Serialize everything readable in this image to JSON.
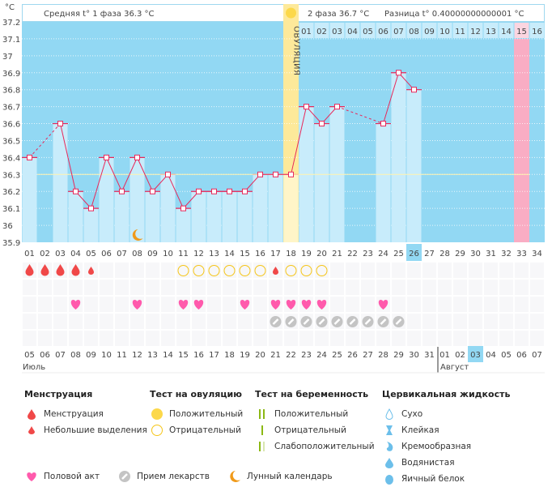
{
  "header": {
    "unit": "°C",
    "phase1": "Средняя t° 1 фаза  36.3 °C",
    "phase2": "2 фаза  36.7 °C",
    "diff": "Разница t° 0.40000000000001 °C",
    "ovulation_label": "ОВУЛЯЦИЯ"
  },
  "chart_data": {
    "type": "bar",
    "ylim": [
      35.9,
      37.2
    ],
    "yticks": [
      "35.9",
      "36",
      "36.1",
      "36.2",
      "36.3",
      "36.4",
      "36.5",
      "36.6",
      "36.7",
      "36.8",
      "36.9",
      "37",
      "37.1",
      "37.2"
    ],
    "cycle_days": [
      "01",
      "02",
      "03",
      "04",
      "05",
      "06",
      "07",
      "08",
      "09",
      "10",
      "11",
      "12",
      "13",
      "14",
      "15",
      "16",
      "17",
      "18",
      "19",
      "20",
      "21",
      "22",
      "23",
      "24",
      "25",
      "26",
      "27",
      "28",
      "29",
      "30",
      "31",
      "32",
      "33",
      "34"
    ],
    "temperatures": [
      36.4,
      null,
      36.6,
      36.2,
      36.1,
      36.4,
      36.2,
      36.4,
      36.2,
      36.3,
      36.1,
      36.2,
      36.2,
      36.2,
      36.2,
      36.3,
      36.3,
      36.3,
      36.7,
      36.6,
      36.7,
      null,
      null,
      36.6,
      36.9,
      36.8,
      null,
      null,
      null,
      null,
      null,
      null,
      null,
      null
    ],
    "coverline": 36.3,
    "ovulation_day": 18,
    "expected_period_day": 33,
    "today_day": 26,
    "luteal_days": [
      "01",
      "02",
      "03",
      "04",
      "05",
      "06",
      "07",
      "08",
      "09",
      "10",
      "11",
      "12",
      "13",
      "14",
      "15",
      "16"
    ],
    "moon_day": 8,
    "menstruation": {
      "heavy": [
        1,
        2,
        3,
        4
      ],
      "light": [
        5,
        17
      ]
    },
    "ovulation_test_negative": [
      11,
      12,
      13,
      14,
      15,
      16,
      18,
      19,
      20
    ],
    "intercourse": [
      4,
      8,
      11,
      12,
      15,
      17,
      18,
      19,
      20,
      24
    ],
    "medication": [
      17,
      18,
      19,
      20,
      21,
      22,
      23,
      24,
      25
    ],
    "dates": [
      "05",
      "06",
      "07",
      "08",
      "09",
      "10",
      "11",
      "12",
      "13",
      "14",
      "15",
      "16",
      "17",
      "18",
      "19",
      "20",
      "21",
      "22",
      "23",
      "24",
      "25",
      "26",
      "27",
      "28",
      "29",
      "30",
      "31",
      "01",
      "02",
      "03",
      "04",
      "05",
      "06",
      "07"
    ],
    "weekend_dates_idx": [
      0,
      1,
      7,
      8,
      14,
      15,
      21,
      22,
      28,
      29
    ],
    "months": [
      "Июль",
      "Август"
    ],
    "colors": {
      "bg": "#92d8f3",
      "bar": "#c8ecfb",
      "line": "#e8285a",
      "ovulation": "#fde99a",
      "period": "#f9adc4",
      "today": "#92d8f3",
      "blood": "#f04848",
      "heart": "#ff5aac",
      "pill": "#c4c4c4",
      "ovu_neg": "#f5c518"
    }
  },
  "legend": {
    "menstruation": {
      "title": "Менструация",
      "items": [
        "Менструация",
        "Небольшие выделения"
      ]
    },
    "ovulation_test": {
      "title": "Тест на овуляцию",
      "items": [
        "Положительный",
        "Отрицательный"
      ]
    },
    "pregnancy_test": {
      "title": "Тест на беременность",
      "items": [
        "Положительный",
        "Отрицательный",
        "Слабоположительный"
      ]
    },
    "cervical": {
      "title": "Цервикальная жидкость",
      "items": [
        "Сухо",
        "Клейкая",
        "Кремообразная",
        "Водянистая",
        "Яичный белок"
      ]
    },
    "other": [
      "Половой акт",
      "Прием лекарств",
      "Лунный календарь"
    ]
  }
}
